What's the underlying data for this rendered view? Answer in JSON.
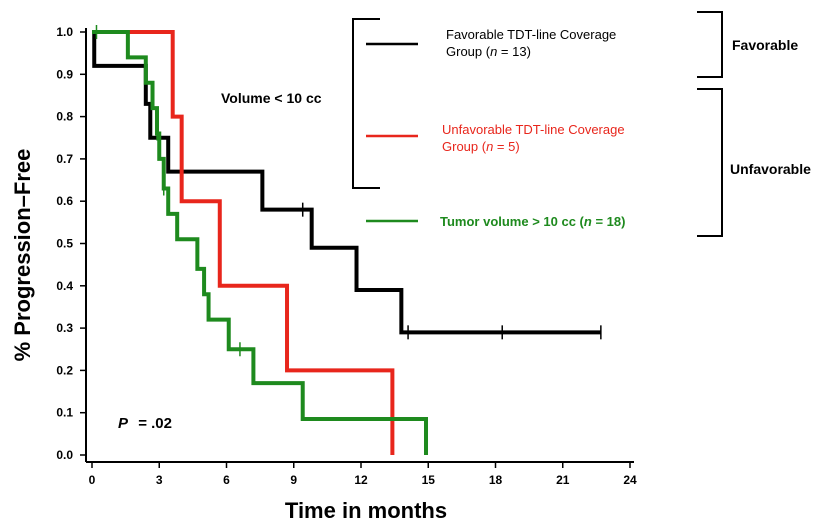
{
  "chart_data": {
    "type": "line",
    "chart_style": "step (Kaplan-Meier survival curves)",
    "xlabel": "Time in months",
    "ylabel": "% Progression–Free",
    "xlim": [
      0,
      24
    ],
    "ylim": [
      0,
      1.0
    ],
    "xticks": [
      "0",
      "3",
      "6",
      "9",
      "12",
      "15",
      "18",
      "21",
      "24"
    ],
    "yticks": [
      "0.0",
      "0.1",
      "0.2",
      "0.3",
      "0.4",
      "0.5",
      "0.6",
      "0.7",
      "0.8",
      "0.9",
      "1.0"
    ],
    "grid": false,
    "annotations": {
      "p_value_label": "P",
      "p_value": "= .02",
      "subset_label": "Volume  < 10 cc",
      "bracket_favorable": "Favorable",
      "bracket_unfavorable": "Unfavorable"
    },
    "series": [
      {
        "name": "Favorable TDT-line Coverage Group (n = 13)",
        "legend_line1": "Favorable TDT-line Coverage",
        "legend_line2_pre": "Group (",
        "legend_n": "n",
        "legend_line2_post": " = 13)",
        "color": "#000000",
        "steps": [
          [
            0,
            1.0
          ],
          [
            0.1,
            0.92
          ],
          [
            2.4,
            0.83
          ],
          [
            2.6,
            0.75
          ],
          [
            3.4,
            0.67
          ],
          [
            7.6,
            0.58
          ],
          [
            9.8,
            0.49
          ],
          [
            11.8,
            0.39
          ],
          [
            13.8,
            0.29
          ],
          [
            22.7,
            0.29
          ]
        ],
        "censored_x": [
          9.4,
          14.1,
          18.3,
          22.7
        ]
      },
      {
        "name": "Unfavorable TDT-line Coverage Group (n = 5)",
        "legend_line1": "Unfavorable TDT-line Coverage",
        "legend_line2_pre": "Group (",
        "legend_n": "n",
        "legend_line2_post": " = 5)",
        "color": "#e8261c",
        "steps": [
          [
            0,
            1.0
          ],
          [
            3.6,
            0.8
          ],
          [
            4.0,
            0.6
          ],
          [
            5.7,
            0.4
          ],
          [
            8.7,
            0.2
          ],
          [
            13.4,
            0.0
          ]
        ],
        "censored_x": []
      },
      {
        "name": "Tumor volume > 10 cc (n = 18)",
        "legend_line1_pre": "Tumor volume  > 10 cc  (",
        "legend_n": "n",
        "legend_line1_post": " = 18)",
        "color": "#1e8a1e",
        "steps": [
          [
            0,
            1.0
          ],
          [
            1.6,
            0.94
          ],
          [
            2.4,
            0.88
          ],
          [
            2.7,
            0.82
          ],
          [
            2.9,
            0.76
          ],
          [
            3.0,
            0.7
          ],
          [
            3.2,
            0.63
          ],
          [
            3.4,
            0.57
          ],
          [
            3.8,
            0.51
          ],
          [
            4.7,
            0.44
          ],
          [
            5.0,
            0.38
          ],
          [
            5.2,
            0.32
          ],
          [
            6.1,
            0.25
          ],
          [
            7.2,
            0.17
          ],
          [
            9.4,
            0.085
          ],
          [
            14.9,
            0.0
          ]
        ],
        "censored_x": [
          0.2,
          2.9,
          3.2,
          6.6
        ]
      }
    ]
  }
}
